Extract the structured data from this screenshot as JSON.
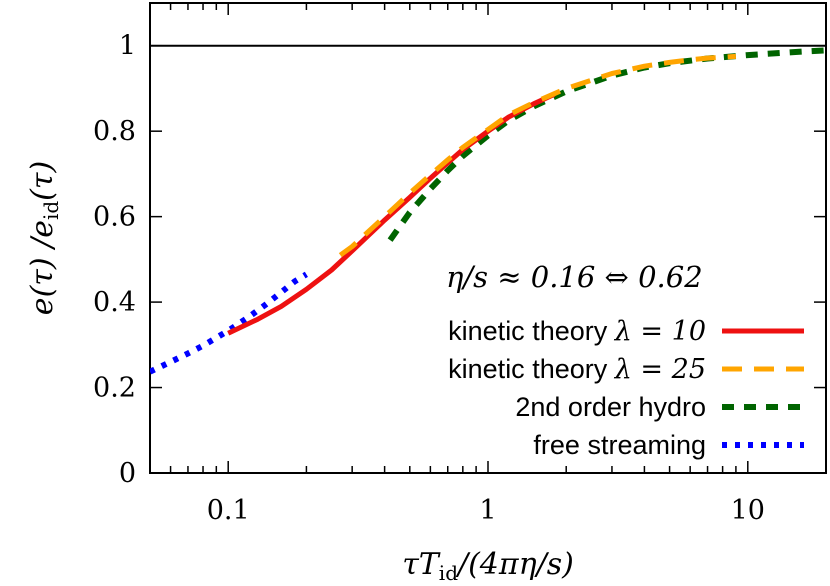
{
  "chart_data": {
    "type": "line",
    "ylabel": "e(τ) /e_id(τ)",
    "ylabel_parts": {
      "main": "e(τ) /e",
      "sub": "id",
      "tail": "(τ)"
    },
    "xlabel": "τT_id/(4πη/s)",
    "xlabel_parts": {
      "pre": "τT",
      "sub": "id",
      "tail": "/(4πη/s)"
    },
    "x_scale": "log",
    "xlim": [
      0.05,
      20
    ],
    "ylim": [
      0,
      1.1
    ],
    "x_ticks": [
      0.1,
      1,
      10
    ],
    "x_tick_labels": [
      "0.1",
      "1",
      "10"
    ],
    "y_ticks": [
      0,
      0.2,
      0.4,
      0.6,
      0.8,
      1
    ],
    "y_tick_labels": [
      "0",
      "0.2",
      "0.4",
      "0.6",
      "0.8",
      "1"
    ],
    "annotation": "η/s ≈ 0.16 ⇔ 0.62",
    "reference_line": {
      "y": 1,
      "color": "#000000"
    },
    "grid": false,
    "legend_position": "bottom-right",
    "series": [
      {
        "name": "kinetic theory λ = 10",
        "name_parts": {
          "pre": "kinetic theory ",
          "math": "λ = 10"
        },
        "color": "#ee1111",
        "style": "solid",
        "x": [
          0.1,
          0.13,
          0.16,
          0.2,
          0.25,
          0.3,
          0.4,
          0.5,
          0.6,
          0.7,
          0.8,
          1.0,
          1.2,
          1.5,
          1.8
        ],
        "y": [
          0.327,
          0.36,
          0.39,
          0.43,
          0.475,
          0.52,
          0.592,
          0.645,
          0.69,
          0.726,
          0.757,
          0.8,
          0.833,
          0.864,
          0.886
        ]
      },
      {
        "name": "kinetic theory λ = 25",
        "name_parts": {
          "pre": "kinetic theory ",
          "math": "λ = 25"
        },
        "color": "#ffa500",
        "style": "dashed",
        "x": [
          0.27,
          0.3,
          0.4,
          0.5,
          0.6,
          0.7,
          0.8,
          1.0,
          1.2,
          1.5,
          2,
          3,
          4,
          5,
          6,
          7,
          9
        ],
        "y": [
          0.51,
          0.53,
          0.6,
          0.655,
          0.698,
          0.733,
          0.762,
          0.804,
          0.838,
          0.867,
          0.9,
          0.935,
          0.952,
          0.961,
          0.967,
          0.971,
          0.975
        ]
      },
      {
        "name": "2nd order hydro",
        "name_parts": {
          "pre": "2nd order hydro",
          "math": ""
        },
        "color": "#006400",
        "style": "dashed-thick",
        "x": [
          0.42,
          0.5,
          0.6,
          0.7,
          0.8,
          1.0,
          1.2,
          1.5,
          2,
          3,
          4,
          5,
          7,
          10,
          15,
          20
        ],
        "y": [
          0.545,
          0.61,
          0.665,
          0.708,
          0.742,
          0.79,
          0.825,
          0.858,
          0.893,
          0.93,
          0.949,
          0.959,
          0.97,
          0.978,
          0.985,
          0.989
        ]
      },
      {
        "name": "free streaming",
        "name_parts": {
          "pre": "free streaming",
          "math": ""
        },
        "color": "#0000ff",
        "style": "dotted",
        "x": [
          0.05,
          0.06,
          0.07,
          0.08,
          0.1,
          0.12,
          0.14,
          0.16,
          0.18,
          0.2
        ],
        "y": [
          0.237,
          0.26,
          0.28,
          0.298,
          0.333,
          0.365,
          0.395,
          0.423,
          0.448,
          0.465
        ]
      }
    ]
  }
}
